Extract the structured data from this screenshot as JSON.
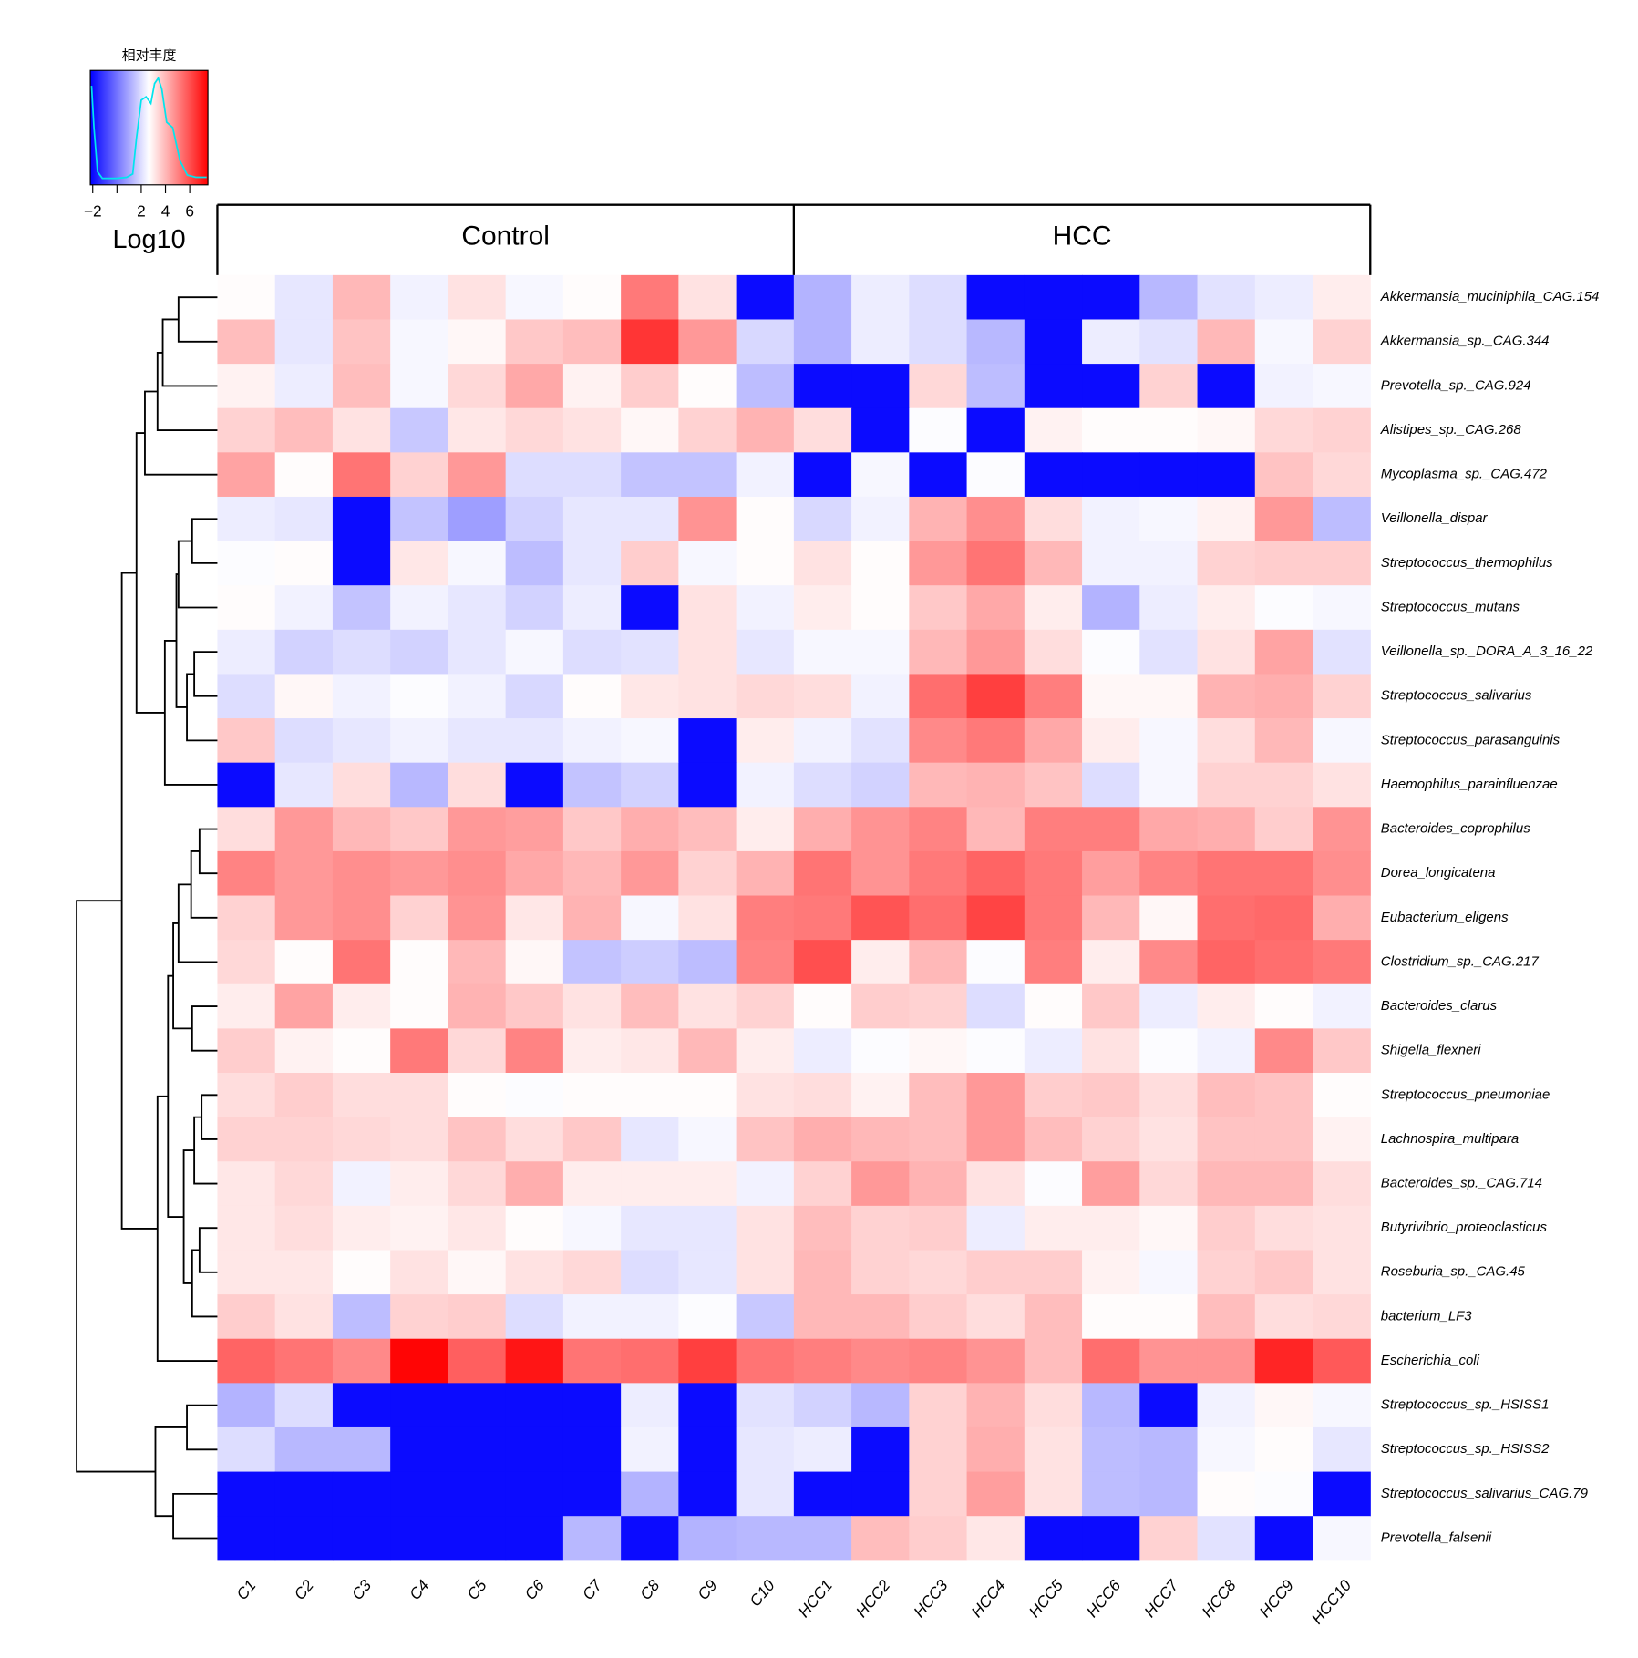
{
  "chart_data": {
    "type": "heatmap",
    "legend_title": "相对丰度",
    "legend_label": "Log10",
    "zlim": [
      -2.2,
      7.5
    ],
    "zticks": [
      {
        "value": -2,
        "label": "−2"
      },
      {
        "value": 0,
        "label": null
      },
      2,
      4,
      6
    ],
    "colors": [
      "#0000ff",
      "#ffffff",
      "#ff0000"
    ],
    "density_color": "#00e5ee",
    "density": {
      "x": [
        -2.1,
        -1.9,
        -1.6,
        -1.2,
        0,
        0.8,
        1.3,
        1.6,
        2,
        2.4,
        2.8,
        3.1,
        3.4,
        3.7,
        4.1,
        4.6,
        5.2,
        5.8,
        6.5,
        7.4
      ],
      "y": [
        0.88,
        0.5,
        0.1,
        0.04,
        0.04,
        0.05,
        0.08,
        0.4,
        0.75,
        0.78,
        0.72,
        0.9,
        0.95,
        0.85,
        0.55,
        0.5,
        0.2,
        0.07,
        0.05,
        0.05
      ]
    },
    "column_groups": [
      {
        "name": "Control",
        "columns": [
          "C1",
          "C2",
          "C3",
          "C4",
          "C5",
          "C6",
          "C7",
          "C8",
          "C9",
          "C10"
        ]
      },
      {
        "name": "HCC",
        "columns": [
          "HCC1",
          "HCC2",
          "HCC3",
          "HCC4",
          "HCC5",
          "HCC6",
          "HCC7",
          "HCC8",
          "HCC9",
          "HCC10"
        ]
      }
    ],
    "rows": [
      "Akkermansia_muciniphila_CAG.154",
      "Akkermansia_sp._CAG.344",
      "Prevotella_sp._CAG.924",
      "Alistipes_sp._CAG.268",
      "Mycoplasma_sp._CAG.472",
      "Veillonella_dispar",
      "Streptococcus_thermophilus",
      "Streptococcus_mutans",
      "Veillonella_sp._DORA_A_3_16_22",
      "Streptococcus_salivarius",
      "Streptococcus_parasanguinis",
      "Haemophilus_parainfluenzae",
      "Bacteroides_coprophilus",
      "Dorea_longicatena",
      "Eubacterium_eligens",
      "Clostridium_sp._CAG.217",
      "Bacteroides_clarus",
      "Shigella_flexneri",
      "Streptococcus_pneumoniae",
      "Lachnospira_multipara",
      "Bacteroides_sp._CAG.714",
      "Butyrivibrio_proteoclasticus",
      "Roseburia_sp._CAG.45",
      "bacterium_LF3",
      "Escherichia_coli",
      "Streptococcus_sp._HSISS1",
      "Streptococcus_sp._HSISS2",
      "Streptococcus_salivarius_CAG.79",
      "Prevotella_falsenii"
    ],
    "values": [
      [
        2.7,
        2.2,
        4.0,
        2.4,
        3.2,
        2.5,
        2.7,
        5.2,
        3.2,
        -2,
        1.2,
        2.3,
        2.0,
        -2,
        -2,
        -2,
        1.3,
        2.1,
        2.3,
        3.0
      ],
      [
        3.9,
        2.2,
        3.8,
        2.5,
        2.8,
        3.7,
        3.9,
        6.5,
        4.6,
        1.9,
        1.2,
        2.3,
        2.0,
        1.3,
        -2,
        2.3,
        2.1,
        4.0,
        2.5,
        3.5
      ],
      [
        2.9,
        2.3,
        3.9,
        2.5,
        3.4,
        4.3,
        2.9,
        3.6,
        2.7,
        1.4,
        -2,
        -2,
        3.4,
        1.4,
        -2,
        -2,
        3.5,
        -2,
        2.4,
        2.5
      ],
      [
        3.5,
        3.9,
        3.2,
        1.6,
        3.1,
        3.4,
        3.2,
        2.8,
        3.5,
        4.1,
        3.3,
        -2,
        2.6,
        -2,
        2.9,
        2.7,
        2.7,
        2.8,
        3.4,
        3.5
      ],
      [
        4.4,
        2.7,
        5.3,
        3.5,
        4.6,
        2.0,
        2.0,
        1.5,
        1.5,
        2.4,
        -2,
        2.5,
        -2,
        2.6,
        -2,
        -2,
        -2,
        -2,
        3.8,
        3.4
      ],
      [
        2.3,
        2.2,
        -2,
        1.5,
        0.8,
        1.8,
        2.2,
        2.2,
        4.7,
        2.7,
        1.9,
        2.4,
        4.1,
        4.8,
        3.3,
        2.4,
        2.5,
        2.9,
        4.6,
        1.4
      ],
      [
        2.6,
        2.7,
        -2,
        3.1,
        2.5,
        1.4,
        2.2,
        3.6,
        2.5,
        2.7,
        3.2,
        2.7,
        4.6,
        5.3,
        4.0,
        2.4,
        2.4,
        3.5,
        3.6,
        3.6
      ],
      [
        2.7,
        2.4,
        1.5,
        2.4,
        2.2,
        1.8,
        2.3,
        -2,
        3.2,
        2.4,
        3.0,
        2.7,
        3.7,
        4.3,
        3.0,
        1.2,
        2.3,
        3.0,
        2.6,
        2.5
      ],
      [
        2.3,
        1.8,
        2.0,
        1.8,
        2.2,
        2.5,
        2.0,
        2.1,
        3.2,
        2.2,
        2.5,
        2.5,
        4.0,
        4.6,
        3.3,
        2.6,
        2.1,
        3.2,
        4.4,
        2.1
      ],
      [
        2.0,
        2.8,
        2.4,
        2.6,
        2.4,
        1.9,
        2.7,
        3.1,
        3.2,
        3.4,
        3.3,
        2.4,
        5.4,
        6.3,
        5.1,
        2.8,
        2.8,
        4.1,
        4.2,
        3.5
      ],
      [
        3.7,
        2.0,
        2.2,
        2.4,
        2.2,
        2.2,
        2.4,
        2.5,
        -2,
        3.0,
        2.4,
        2.1,
        4.9,
        5.2,
        4.3,
        3.0,
        2.5,
        3.3,
        4.0,
        2.5
      ],
      [
        -2,
        2.2,
        3.3,
        1.3,
        3.3,
        -2,
        1.5,
        1.8,
        -2,
        2.4,
        2.0,
        1.8,
        4.0,
        4.1,
        3.8,
        2.0,
        2.5,
        3.5,
        3.5,
        3.2
      ],
      [
        3.3,
        4.6,
        4.0,
        3.7,
        4.6,
        4.5,
        3.7,
        4.2,
        3.9,
        3.0,
        4.2,
        4.7,
        5.0,
        4.0,
        5.1,
        5.1,
        4.3,
        4.2,
        3.6,
        4.7
      ],
      [
        5.0,
        4.6,
        4.8,
        4.6,
        4.8,
        4.3,
        4.0,
        4.6,
        3.5,
        4.1,
        5.3,
        4.7,
        5.2,
        5.6,
        5.2,
        4.5,
        5.0,
        5.3,
        5.3,
        4.8
      ],
      [
        3.5,
        4.6,
        4.8,
        3.5,
        4.7,
        3.1,
        4.1,
        2.5,
        3.2,
        5.1,
        5.2,
        5.9,
        5.4,
        6.2,
        5.2,
        4.0,
        2.8,
        5.4,
        5.5,
        4.2
      ],
      [
        3.4,
        2.7,
        5.3,
        2.7,
        4.0,
        2.8,
        1.5,
        1.7,
        1.4,
        5.0,
        6.0,
        3.0,
        4.0,
        2.6,
        5.1,
        3.0,
        4.9,
        5.6,
        5.4,
        5.2
      ],
      [
        3.0,
        4.4,
        3.0,
        2.7,
        4.1,
        3.7,
        3.2,
        3.9,
        3.2,
        3.5,
        2.7,
        3.6,
        3.5,
        2.0,
        2.7,
        3.7,
        2.3,
        3.0,
        2.7,
        2.4
      ],
      [
        3.6,
        2.9,
        2.7,
        5.2,
        3.4,
        5.0,
        3.0,
        3.1,
        4.0,
        3.0,
        2.3,
        2.6,
        2.8,
        2.6,
        2.3,
        3.2,
        2.6,
        2.4,
        4.9,
        3.7
      ],
      [
        3.3,
        3.6,
        3.3,
        3.3,
        2.7,
        2.6,
        2.7,
        2.7,
        2.7,
        3.2,
        3.3,
        2.9,
        3.9,
        4.6,
        3.6,
        3.7,
        3.3,
        3.9,
        3.8,
        2.7
      ],
      [
        3.5,
        3.5,
        3.4,
        3.3,
        3.8,
        3.3,
        3.7,
        2.2,
        2.5,
        3.8,
        4.2,
        4.0,
        3.9,
        4.6,
        3.9,
        3.5,
        3.2,
        3.8,
        3.8,
        2.9
      ],
      [
        3.1,
        3.4,
        2.4,
        3.0,
        3.4,
        4.2,
        3.0,
        3.0,
        3.0,
        2.4,
        3.5,
        4.6,
        4.1,
        3.2,
        2.6,
        4.5,
        3.4,
        4.0,
        4.0,
        3.3
      ],
      [
        3.1,
        3.3,
        3.0,
        2.9,
        3.1,
        2.7,
        2.5,
        2.2,
        2.2,
        3.2,
        3.9,
        3.5,
        3.6,
        2.3,
        3.0,
        3.0,
        2.8,
        3.6,
        3.3,
        3.2
      ],
      [
        3.1,
        3.1,
        2.7,
        3.2,
        2.8,
        3.2,
        3.4,
        2.0,
        2.2,
        3.2,
        4.0,
        3.5,
        3.4,
        3.6,
        3.6,
        2.9,
        2.5,
        3.5,
        3.7,
        3.2
      ],
      [
        3.6,
        3.2,
        1.4,
        3.5,
        3.6,
        2.0,
        2.4,
        2.4,
        2.6,
        1.6,
        4.0,
        4.0,
        3.6,
        3.3,
        3.9,
        2.7,
        2.7,
        3.9,
        3.3,
        3.4
      ],
      [
        5.6,
        5.3,
        4.9,
        7.4,
        5.7,
        7.1,
        5.3,
        5.4,
        6.3,
        5.3,
        5.1,
        4.9,
        5.0,
        4.7,
        3.9,
        5.4,
        4.7,
        4.7,
        6.8,
        5.8
      ],
      [
        1.2,
        2.0,
        -2,
        -2,
        -2,
        -2,
        -2,
        2.3,
        -2,
        2.1,
        1.8,
        1.3,
        3.5,
        4.1,
        3.3,
        1.3,
        -2,
        2.4,
        2.8,
        2.5
      ],
      [
        2.0,
        1.3,
        1.3,
        -2,
        -2,
        -2,
        -2,
        2.4,
        -2,
        2.2,
        2.3,
        -2,
        3.5,
        4.2,
        3.2,
        1.4,
        1.3,
        2.5,
        2.7,
        2.2
      ],
      [
        -2,
        -2,
        -2,
        -2,
        -2,
        -2,
        -2,
        1.2,
        -2,
        2.2,
        -2,
        -2,
        3.5,
        4.5,
        3.2,
        1.4,
        1.3,
        2.7,
        2.6,
        -2
      ],
      [
        -2,
        -2,
        -2,
        -2,
        -2,
        -2,
        1.3,
        -2,
        1.2,
        1.3,
        1.3,
        3.9,
        3.6,
        3.1,
        -2,
        -2,
        3.5,
        2.1,
        -2,
        2.5
      ]
    ]
  }
}
